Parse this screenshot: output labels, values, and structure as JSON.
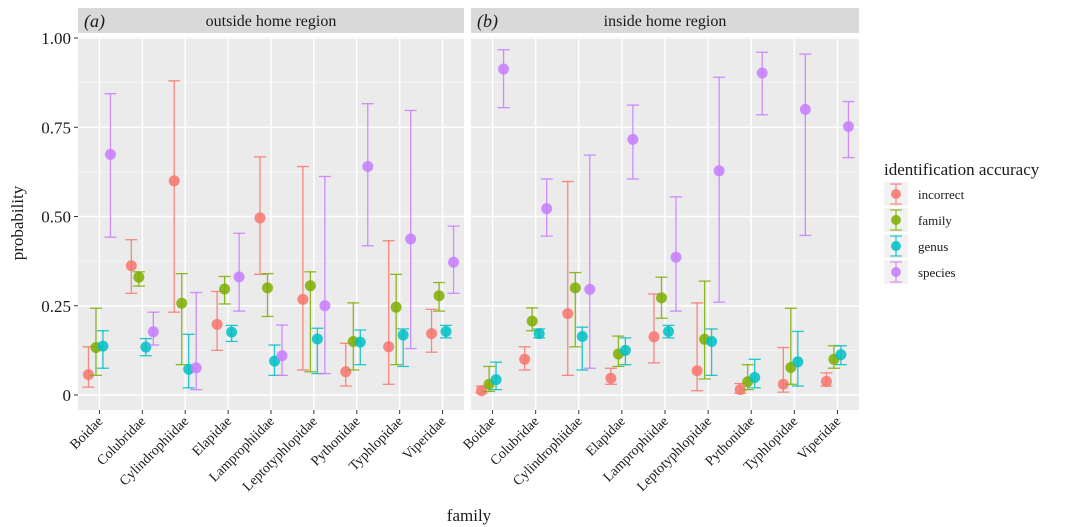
{
  "chart_data": {
    "type": "scatter",
    "description_type": "point estimates with error bars, faceted",
    "xlabel": "family",
    "ylabel": "probability",
    "ylim": [
      0,
      1
    ],
    "y_ticks": [
      "0",
      "0.25",
      "0.50",
      "0.75",
      "1.00"
    ],
    "y_tick_values": [
      0,
      0.25,
      0.5,
      0.75,
      1.0
    ],
    "categories": [
      "Boidae",
      "Colubridae",
      "Cylindrophiidae",
      "Elapidae",
      "Lamprophiidae",
      "Leptotyphlopidae",
      "Pythonidae",
      "Typhlopidae",
      "Viperidae"
    ],
    "legend": {
      "title": "identification accuracy",
      "position": "right",
      "items": [
        {
          "name": "incorrect",
          "color": "#F8766D"
        },
        {
          "name": "family",
          "color": "#7CAE00"
        },
        {
          "name": "genus",
          "color": "#00BFC4"
        },
        {
          "name": "species",
          "color": "#C77CFF"
        }
      ]
    },
    "panels": [
      {
        "tag": "(a)",
        "title": "outside home region",
        "series": [
          {
            "name": "incorrect",
            "values": [
              0.057,
              0.362,
              0.6,
              0.198,
              0.496,
              0.268,
              0.065,
              0.135,
              0.172
            ],
            "lower": [
              0.022,
              0.285,
              0.232,
              0.125,
              0.338,
              0.07,
              0.025,
              0.03,
              0.12
            ],
            "upper": [
              0.135,
              0.435,
              0.88,
              0.29,
              0.667,
              0.64,
              0.145,
              0.432,
              0.24
            ]
          },
          {
            "name": "family",
            "values": [
              0.133,
              0.33,
              0.257,
              0.297,
              0.3,
              0.306,
              0.15,
              0.246,
              0.278
            ],
            "lower": [
              0.055,
              0.305,
              0.085,
              0.255,
              0.22,
              0.065,
              0.07,
              0.085,
              0.235
            ],
            "upper": [
              0.243,
              0.345,
              0.34,
              0.332,
              0.34,
              0.345,
              0.258,
              0.338,
              0.315
            ]
          },
          {
            "name": "genus",
            "values": [
              0.137,
              0.134,
              0.072,
              0.176,
              0.095,
              0.157,
              0.148,
              0.168,
              0.178
            ],
            "lower": [
              0.075,
              0.11,
              0.02,
              0.15,
              0.055,
              0.06,
              0.085,
              0.08,
              0.16
            ],
            "upper": [
              0.18,
              0.158,
              0.17,
              0.195,
              0.14,
              0.187,
              0.182,
              0.185,
              0.195
            ]
          },
          {
            "name": "species",
            "values": [
              0.674,
              0.177,
              0.076,
              0.331,
              0.11,
              0.25,
              0.64,
              0.437,
              0.372
            ],
            "lower": [
              0.442,
              0.14,
              0.015,
              0.235,
              0.055,
              0.06,
              0.418,
              0.13,
              0.285
            ],
            "upper": [
              0.844,
              0.232,
              0.287,
              0.453,
              0.196,
              0.612,
              0.816,
              0.797,
              0.473
            ]
          }
        ]
      },
      {
        "tag": "(b)",
        "title": "inside home region",
        "series": [
          {
            "name": "incorrect",
            "values": [
              0.012,
              0.1,
              0.228,
              0.047,
              0.163,
              0.068,
              0.015,
              0.03,
              0.038
            ],
            "lower": [
              0.005,
              0.07,
              0.055,
              0.03,
              0.09,
              0.012,
              0.005,
              0.008,
              0.025
            ],
            "upper": [
              0.025,
              0.135,
              0.598,
              0.075,
              0.283,
              0.258,
              0.032,
              0.133,
              0.062
            ]
          },
          {
            "name": "family",
            "values": [
              0.03,
              0.207,
              0.3,
              0.115,
              0.272,
              0.156,
              0.037,
              0.077,
              0.1
            ],
            "lower": [
              0.01,
              0.18,
              0.135,
              0.08,
              0.215,
              0.045,
              0.015,
              0.03,
              0.075
            ],
            "upper": [
              0.08,
              0.244,
              0.343,
              0.165,
              0.33,
              0.319,
              0.085,
              0.243,
              0.138
            ]
          },
          {
            "name": "genus",
            "values": [
              0.043,
              0.172,
              0.164,
              0.125,
              0.178,
              0.15,
              0.049,
              0.093,
              0.113
            ],
            "lower": [
              0.015,
              0.16,
              0.07,
              0.085,
              0.16,
              0.055,
              0.02,
              0.025,
              0.085
            ],
            "upper": [
              0.092,
              0.185,
              0.19,
              0.16,
              0.195,
              0.185,
              0.1,
              0.178,
              0.138
            ]
          },
          {
            "name": "species",
            "values": [
              0.913,
              0.522,
              0.296,
              0.716,
              0.386,
              0.628,
              0.902,
              0.8,
              0.752
            ],
            "lower": [
              0.805,
              0.445,
              0.075,
              0.605,
              0.235,
              0.26,
              0.785,
              0.447,
              0.665
            ],
            "upper": [
              0.967,
              0.605,
              0.672,
              0.812,
              0.555,
              0.89,
              0.96,
              0.955,
              0.822
            ]
          }
        ]
      }
    ]
  }
}
